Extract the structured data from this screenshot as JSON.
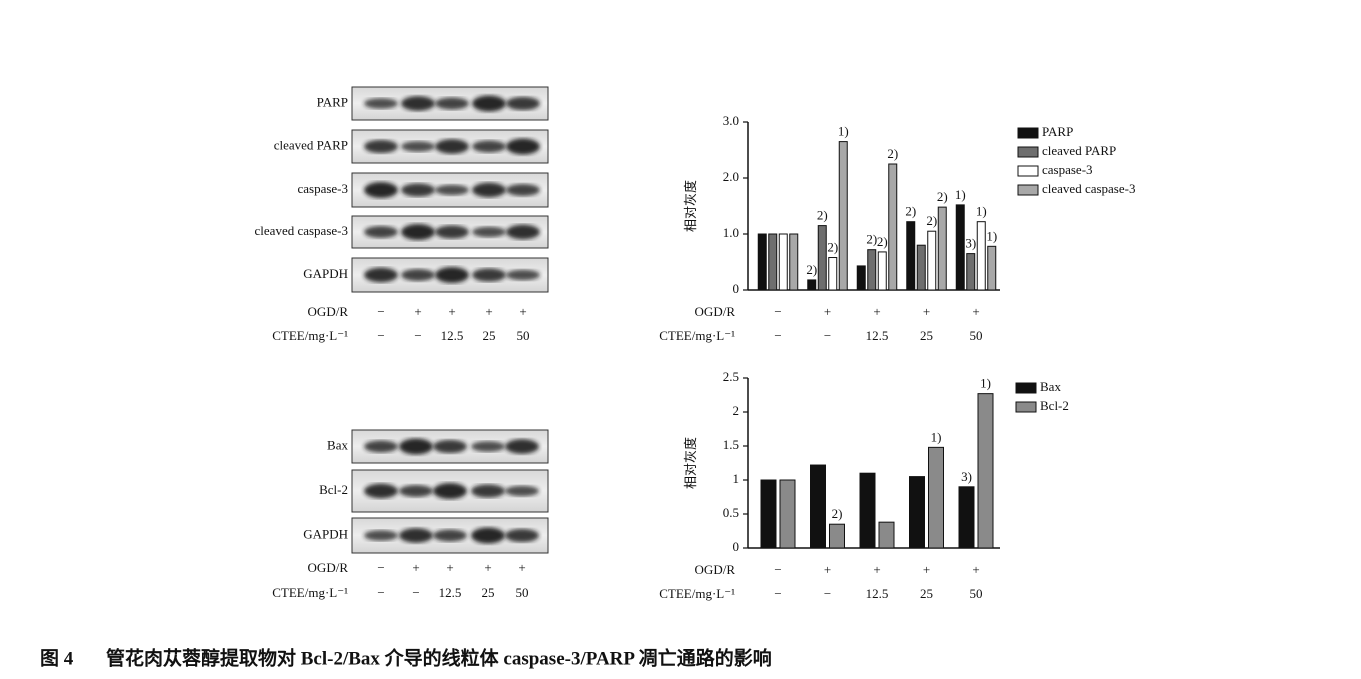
{
  "blots": [
    {
      "bands": [
        "PARP",
        "cleaved PARP",
        "caspase-3",
        "cleaved caspase-3",
        "GAPDH"
      ],
      "rows": [
        {
          "label": "OGD/R",
          "values": [
            "−",
            "+",
            "+",
            "+",
            "+"
          ]
        },
        {
          "label": "CTEE/mg·L⁻¹",
          "values": [
            "−",
            "−",
            "12.5",
            "25",
            "50"
          ]
        }
      ]
    },
    {
      "bands": [
        "Bax",
        "Bcl-2",
        "GAPDH"
      ],
      "rows": [
        {
          "label": "OGD/R",
          "values": [
            "−",
            "+",
            "+",
            "+",
            "+"
          ]
        },
        {
          "label": "CTEE/mg·L⁻¹",
          "values": [
            "−",
            "−",
            "12.5",
            "25",
            "50"
          ]
        }
      ]
    }
  ],
  "chart_data": [
    {
      "type": "bar",
      "y_label": "相对灰度",
      "category_rows": [
        {
          "label": "OGD/R",
          "values": [
            "−",
            "+",
            "+",
            "+",
            "+"
          ]
        },
        {
          "label": "CTEE/mg·L⁻¹",
          "values": [
            "−",
            "−",
            "12.5",
            "25",
            "50"
          ]
        }
      ],
      "ylim": [
        0,
        3
      ],
      "yticks": [
        0,
        {
          "value": 1,
          "label": "1.0"
        },
        {
          "value": 2,
          "label": "2.0"
        },
        {
          "value": 3,
          "label": "3.0"
        }
      ],
      "series": [
        {
          "name": "PARP",
          "color": "#111111",
          "values": [
            1.0,
            0.18,
            0.43,
            1.22,
            1.52
          ],
          "notes": [
            null,
            "2)",
            null,
            "2)",
            "1)"
          ]
        },
        {
          "name": "cleaved PARP",
          "color": "#6e6e6e",
          "values": [
            1.0,
            1.15,
            0.72,
            0.8,
            0.65
          ],
          "notes": [
            null,
            "2)",
            "2)",
            null,
            "3)"
          ]
        },
        {
          "name": "caspase-3",
          "color": "#ffffff",
          "values": [
            1.0,
            0.58,
            0.68,
            1.05,
            1.22
          ],
          "notes": [
            null,
            "2)",
            "2)",
            "2)",
            "1)"
          ]
        },
        {
          "name": "cleaved caspase-3",
          "color": "#a8a8a8",
          "values": [
            1.0,
            2.65,
            2.25,
            1.48,
            0.78
          ],
          "notes": [
            null,
            "1)",
            "2)",
            "2)",
            "1)"
          ]
        }
      ]
    },
    {
      "type": "bar",
      "y_label": "相对灰度",
      "category_rows": [
        {
          "label": "OGD/R",
          "values": [
            "−",
            "+",
            "+",
            "+",
            "+"
          ]
        },
        {
          "label": "CTEE/mg·L⁻¹",
          "values": [
            "−",
            "−",
            "12.5",
            "25",
            "50"
          ]
        }
      ],
      "ylim": [
        0,
        2.5
      ],
      "yticks": [
        0,
        0.5,
        1,
        1.5,
        2,
        2.5
      ],
      "series": [
        {
          "name": "Bax",
          "color": "#111111",
          "values": [
            1.0,
            1.22,
            1.1,
            1.05,
            0.9
          ],
          "notes": [
            null,
            null,
            null,
            null,
            "3)"
          ]
        },
        {
          "name": "Bcl-2",
          "color": "#8a8a8a",
          "values": [
            1.0,
            0.35,
            0.38,
            1.48,
            2.27
          ],
          "notes": [
            null,
            "2)",
            null,
            "1)",
            "1)"
          ]
        }
      ]
    }
  ],
  "caption": {
    "label": "图 4",
    "text": "管花肉苁蓉醇提取物对 Bcl-2/Bax 介导的线粒体 caspase-3/PARP 凋亡通路的影响"
  }
}
